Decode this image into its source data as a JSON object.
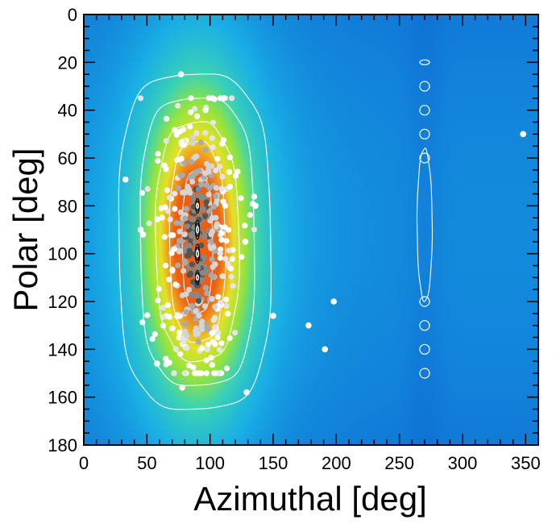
{
  "chart_data": {
    "type": "heatmap",
    "subtype": "2d-histogram-with-contours-and-scatter",
    "title": "",
    "xlabel": "Azimuthal [deg]",
    "ylabel": "Polar [deg]",
    "xlim": [
      0,
      360
    ],
    "ylim": [
      0,
      180
    ],
    "y_inverted": true,
    "x_ticks": [
      0,
      50,
      100,
      150,
      200,
      250,
      300,
      350
    ],
    "y_ticks": [
      0,
      20,
      40,
      60,
      80,
      100,
      120,
      140,
      160,
      180
    ],
    "colors": {
      "background_low": "#0a5fcc",
      "mid": "#19b8e6",
      "high_green": "#9be43c",
      "high_yellow": "#f0e02a",
      "peak_orange": "#f08a1e",
      "contour_white": "#ffffff",
      "contour_dark": "#111111",
      "frame": "#000000"
    },
    "intensity_blobs": [
      {
        "name": "main-cluster",
        "center": [
          90,
          95
        ],
        "spread": [
          24,
          38
        ],
        "peak": 1.0
      },
      {
        "name": "secondary-ridge",
        "center": [
          270,
          90
        ],
        "spread": [
          10,
          70
        ],
        "peak": 0.08
      }
    ],
    "contours": [
      {
        "name": "outer-cluster",
        "center": [
          88,
          95
        ],
        "half_width": [
          60,
          70
        ],
        "color": "white"
      },
      {
        "name": "level-2",
        "center": [
          90,
          95
        ],
        "half_width": [
          45,
          60
        ],
        "color": "white"
      },
      {
        "name": "level-3",
        "center": [
          90,
          95
        ],
        "half_width": [
          33,
          50
        ],
        "color": "white"
      },
      {
        "name": "level-4",
        "center": [
          90,
          95
        ],
        "half_width": [
          22,
          42
        ],
        "color": "white"
      },
      {
        "name": "level-5",
        "center": [
          90,
          95
        ],
        "half_width": [
          12,
          30
        ],
        "color": "white"
      },
      {
        "name": "ridge-270",
        "center": [
          270,
          88
        ],
        "half_width": [
          6,
          32
        ],
        "color": "white"
      }
    ],
    "small_contours_270": [
      20,
      30,
      40,
      50,
      60,
      120,
      130,
      140,
      150
    ],
    "core_contours": [
      {
        "center": [
          90,
          80
        ],
        "r": [
          2.5,
          3
        ]
      },
      {
        "center": [
          90,
          90
        ],
        "r": [
          3,
          4
        ]
      },
      {
        "center": [
          90,
          100
        ],
        "r": [
          3,
          4
        ]
      },
      {
        "center": [
          90,
          110
        ],
        "r": [
          2.5,
          3
        ]
      }
    ],
    "outlier_points": [
      [
        77,
        25
      ],
      [
        33,
        69
      ],
      [
        136,
        80
      ],
      [
        150,
        126
      ],
      [
        178,
        130
      ],
      [
        191,
        140
      ],
      [
        198,
        120
      ],
      [
        129,
        158
      ],
      [
        78,
        156
      ],
      [
        348,
        50
      ],
      [
        58,
        146
      ],
      [
        65,
        144
      ],
      [
        45,
        90
      ],
      [
        47,
        92
      ],
      [
        128,
        95
      ]
    ],
    "cluster_point_count": 420,
    "cluster_center": [
      90,
      95
    ],
    "cluster_spread": [
      18,
      28
    ]
  }
}
